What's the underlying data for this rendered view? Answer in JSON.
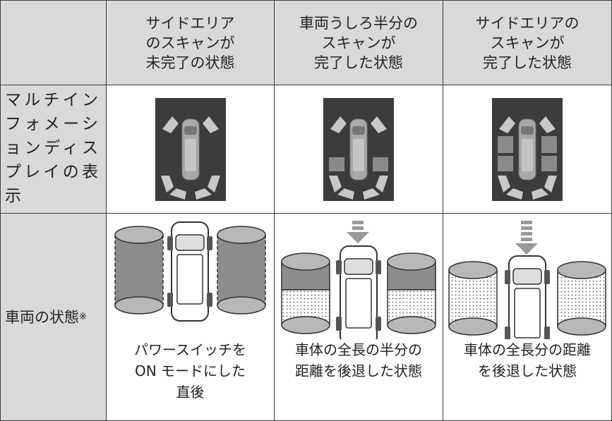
{
  "table": {
    "header": [
      "サイドエリア\nのスキャンが\n未完了の状態",
      "車両うしろ半分の\nスキャンが\n完了した状態",
      "サイドエリアの\nスキャンが\n完了した状態"
    ],
    "rows": [
      {
        "label": "マルチインフォメーションディスプレイの表示"
      },
      {
        "label": "車両の状態",
        "note": "※",
        "cells": [
          "パワースイッチを\nON モードにした\n直後",
          "車体の全長の半分の\n距離を後退した状態",
          "車体の全長分の距離\nを後退した状態"
        ]
      }
    ]
  }
}
